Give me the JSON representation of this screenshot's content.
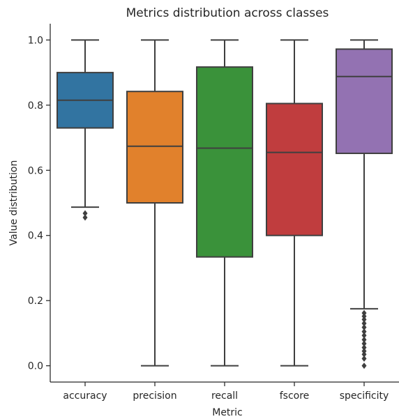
{
  "chart_data": {
    "type": "box",
    "title": "Metrics distribution across classes",
    "xlabel": "Metric",
    "ylabel": "Value distribution",
    "ylim": [
      -0.05,
      1.05
    ],
    "yticks": [
      0.0,
      0.2,
      0.4,
      0.6,
      0.8,
      1.0
    ],
    "ytick_labels": [
      "0.0",
      "0.2",
      "0.4",
      "0.6",
      "0.8",
      "1.0"
    ],
    "categories": [
      "accuracy",
      "precision",
      "recall",
      "fscore",
      "specificity"
    ],
    "colors": [
      "#3274a1",
      "#e1812c",
      "#3a923a",
      "#c03d3e",
      "#9372b2"
    ],
    "edge_color": "#3f3f3f",
    "flier_color": "#3f3f3f",
    "grid": false,
    "legend": "none",
    "boxes": [
      {
        "q1": 0.73,
        "median": 0.815,
        "q3": 0.9,
        "whisker_low": 0.487,
        "whisker_high": 1.0,
        "outliers": [
          0.468,
          0.455
        ]
      },
      {
        "q1": 0.5,
        "median": 0.674,
        "q3": 0.842,
        "whisker_low": 0.0,
        "whisker_high": 1.0,
        "outliers": []
      },
      {
        "q1": 0.334,
        "median": 0.668,
        "q3": 0.917,
        "whisker_low": 0.0,
        "whisker_high": 1.0,
        "outliers": []
      },
      {
        "q1": 0.4,
        "median": 0.655,
        "q3": 0.805,
        "whisker_low": 0.0,
        "whisker_high": 1.0,
        "outliers": []
      },
      {
        "q1": 0.652,
        "median": 0.888,
        "q3": 0.972,
        "whisker_low": 0.175,
        "whisker_high": 1.0,
        "outliers": [
          0.162,
          0.152,
          0.142,
          0.13,
          0.118,
          0.105,
          0.093,
          0.08,
          0.068,
          0.056,
          0.045,
          0.035,
          0.022,
          0.0
        ]
      }
    ]
  }
}
